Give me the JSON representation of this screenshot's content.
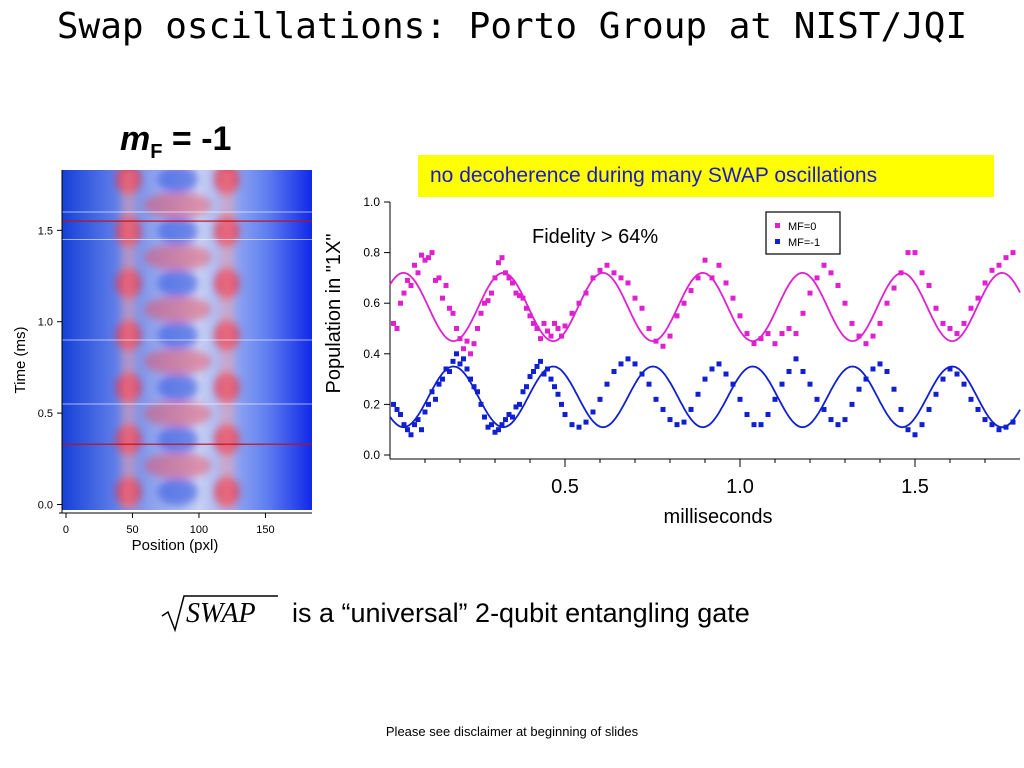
{
  "slide": {
    "title": "Swap oscillations: Porto Group at NIST/JQI",
    "banner": "no decoherence during many SWAP oscillations",
    "gate_symbol": "SWAP",
    "gate_text": "is a “universal” 2-qubit entangling gate",
    "disclaimer": "Please see disclaimer at beginning of slides"
  },
  "colors": {
    "mf0": "#e020d0",
    "mf_minus1": "#1020d0",
    "banner_bg": "#ffff00",
    "banner_text": "#1a1ac8"
  },
  "chart_data": [
    {
      "type": "heatmap",
      "title": "m_F = -1",
      "title_parts": {
        "symbol": "m",
        "subscript": "F",
        "rest": " = -1"
      },
      "xlabel": "Position (pxl)",
      "ylabel": "Time (ms)",
      "xlim": [
        -3,
        185
      ],
      "ylim": [
        -0.03,
        1.83
      ],
      "x_ticks": [
        0,
        50,
        100,
        150
      ],
      "x_tick_labels": [
        "0",
        "50",
        "100",
        "150"
      ],
      "y_ticks": [
        0.0,
        0.5,
        1.0,
        1.5
      ],
      "y_tick_labels": [
        "0.0",
        "0.5",
        "1.0",
        "1.5"
      ],
      "colormap": [
        "#1030e0",
        "#ffffff",
        "#e02030"
      ]
    },
    {
      "type": "scatter",
      "xlabel": "milliseconds",
      "ylabel": "Population in \"1X\"",
      "annotation": "Fidelity > 64%",
      "xlim": [
        0,
        1.8
      ],
      "ylim": [
        0,
        1.0
      ],
      "x_ticks": [
        0.5,
        1.0,
        1.5
      ],
      "x_tick_labels": [
        "0.5",
        "1.0",
        "1.5"
      ],
      "y_ticks": [
        0.0,
        0.2,
        0.4,
        0.6,
        0.8,
        1.0
      ],
      "y_tick_labels": [
        "0.0",
        "0.2",
        "0.4",
        "0.6",
        "0.8",
        "1.0"
      ],
      "legend": "top-right",
      "series": [
        {
          "name": "MF=0",
          "marker": "square",
          "points": [
            [
              0.01,
              0.52
            ],
            [
              0.02,
              0.5
            ],
            [
              0.03,
              0.6
            ],
            [
              0.04,
              0.64
            ],
            [
              0.05,
              0.69
            ],
            [
              0.06,
              0.67
            ],
            [
              0.07,
              0.75
            ],
            [
              0.08,
              0.72
            ],
            [
              0.09,
              0.79
            ],
            [
              0.1,
              0.77
            ],
            [
              0.11,
              0.78
            ],
            [
              0.12,
              0.8
            ],
            [
              0.13,
              0.69
            ],
            [
              0.14,
              0.7
            ],
            [
              0.15,
              0.62
            ],
            [
              0.16,
              0.67
            ],
            [
              0.17,
              0.58
            ],
            [
              0.18,
              0.56
            ],
            [
              0.19,
              0.5
            ],
            [
              0.2,
              0.46
            ],
            [
              0.21,
              0.42
            ],
            [
              0.22,
              0.45
            ],
            [
              0.23,
              0.4
            ],
            [
              0.24,
              0.44
            ],
            [
              0.25,
              0.5
            ],
            [
              0.26,
              0.56
            ],
            [
              0.27,
              0.6
            ],
            [
              0.28,
              0.61
            ],
            [
              0.29,
              0.64
            ],
            [
              0.3,
              0.7
            ],
            [
              0.31,
              0.76
            ],
            [
              0.32,
              0.78
            ],
            [
              0.33,
              0.72
            ],
            [
              0.34,
              0.7
            ],
            [
              0.35,
              0.68
            ],
            [
              0.36,
              0.64
            ],
            [
              0.37,
              0.63
            ],
            [
              0.38,
              0.62
            ],
            [
              0.39,
              0.58
            ],
            [
              0.4,
              0.55
            ],
            [
              0.41,
              0.52
            ],
            [
              0.42,
              0.5
            ],
            [
              0.43,
              0.46
            ],
            [
              0.44,
              0.52
            ],
            [
              0.45,
              0.49
            ],
            [
              0.46,
              0.47
            ],
            [
              0.47,
              0.52
            ],
            [
              0.48,
              0.5
            ],
            [
              0.49,
              0.47
            ],
            [
              0.5,
              0.51
            ],
            [
              0.52,
              0.56
            ],
            [
              0.54,
              0.6
            ],
            [
              0.56,
              0.64
            ],
            [
              0.58,
              0.7
            ],
            [
              0.6,
              0.73
            ],
            [
              0.62,
              0.75
            ],
            [
              0.64,
              0.72
            ],
            [
              0.66,
              0.7
            ],
            [
              0.68,
              0.68
            ],
            [
              0.7,
              0.62
            ],
            [
              0.72,
              0.58
            ],
            [
              0.74,
              0.5
            ],
            [
              0.76,
              0.45
            ],
            [
              0.78,
              0.43
            ],
            [
              0.8,
              0.47
            ],
            [
              0.82,
              0.55
            ],
            [
              0.84,
              0.6
            ],
            [
              0.86,
              0.65
            ],
            [
              0.88,
              0.7
            ],
            [
              0.9,
              0.77
            ],
            [
              0.92,
              0.7
            ],
            [
              0.94,
              0.75
            ],
            [
              0.96,
              0.68
            ],
            [
              0.98,
              0.62
            ],
            [
              1.0,
              0.55
            ],
            [
              1.02,
              0.48
            ],
            [
              1.04,
              0.44
            ],
            [
              1.06,
              0.46
            ],
            [
              1.08,
              0.48
            ],
            [
              1.1,
              0.44
            ],
            [
              1.12,
              0.48
            ],
            [
              1.14,
              0.5
            ],
            [
              1.16,
              0.48
            ],
            [
              1.18,
              0.56
            ],
            [
              1.2,
              0.64
            ],
            [
              1.22,
              0.7
            ],
            [
              1.24,
              0.75
            ],
            [
              1.26,
              0.72
            ],
            [
              1.28,
              0.67
            ],
            [
              1.3,
              0.6
            ],
            [
              1.32,
              0.52
            ],
            [
              1.34,
              0.47
            ],
            [
              1.36,
              0.44
            ],
            [
              1.38,
              0.47
            ],
            [
              1.4,
              0.52
            ],
            [
              1.42,
              0.6
            ],
            [
              1.44,
              0.66
            ],
            [
              1.46,
              0.72
            ],
            [
              1.48,
              0.8
            ],
            [
              1.5,
              0.8
            ],
            [
              1.52,
              0.72
            ],
            [
              1.54,
              0.67
            ],
            [
              1.56,
              0.58
            ],
            [
              1.58,
              0.52
            ],
            [
              1.6,
              0.5
            ],
            [
              1.62,
              0.48
            ],
            [
              1.64,
              0.52
            ],
            [
              1.66,
              0.58
            ],
            [
              1.68,
              0.62
            ],
            [
              1.7,
              0.68
            ],
            [
              1.72,
              0.73
            ],
            [
              1.74,
              0.75
            ],
            [
              1.76,
              0.78
            ],
            [
              1.78,
              0.8
            ]
          ]
        },
        {
          "name": "MF=-1",
          "marker": "square",
          "points": [
            [
              0.01,
              0.2
            ],
            [
              0.02,
              0.18
            ],
            [
              0.03,
              0.16
            ],
            [
              0.04,
              0.12
            ],
            [
              0.05,
              0.1
            ],
            [
              0.06,
              0.08
            ],
            [
              0.07,
              0.12
            ],
            [
              0.08,
              0.14
            ],
            [
              0.09,
              0.1
            ],
            [
              0.1,
              0.17
            ],
            [
              0.11,
              0.2
            ],
            [
              0.12,
              0.25
            ],
            [
              0.13,
              0.22
            ],
            [
              0.14,
              0.28
            ],
            [
              0.15,
              0.3
            ],
            [
              0.16,
              0.34
            ],
            [
              0.17,
              0.33
            ],
            [
              0.18,
              0.37
            ],
            [
              0.19,
              0.4
            ],
            [
              0.2,
              0.36
            ],
            [
              0.21,
              0.38
            ],
            [
              0.22,
              0.34
            ],
            [
              0.23,
              0.3
            ],
            [
              0.24,
              0.27
            ],
            [
              0.25,
              0.25
            ],
            [
              0.26,
              0.2
            ],
            [
              0.27,
              0.15
            ],
            [
              0.28,
              0.11
            ],
            [
              0.29,
              0.12
            ],
            [
              0.3,
              0.09
            ],
            [
              0.31,
              0.1
            ],
            [
              0.32,
              0.12
            ],
            [
              0.33,
              0.14
            ],
            [
              0.34,
              0.16
            ],
            [
              0.35,
              0.15
            ],
            [
              0.36,
              0.19
            ],
            [
              0.37,
              0.2
            ],
            [
              0.38,
              0.25
            ],
            [
              0.39,
              0.27
            ],
            [
              0.4,
              0.31
            ],
            [
              0.41,
              0.33
            ],
            [
              0.42,
              0.35
            ],
            [
              0.43,
              0.37
            ],
            [
              0.44,
              0.32
            ],
            [
              0.45,
              0.34
            ],
            [
              0.46,
              0.3
            ],
            [
              0.47,
              0.27
            ],
            [
              0.48,
              0.24
            ],
            [
              0.49,
              0.2
            ],
            [
              0.5,
              0.16
            ],
            [
              0.52,
              0.12
            ],
            [
              0.54,
              0.11
            ],
            [
              0.56,
              0.13
            ],
            [
              0.58,
              0.17
            ],
            [
              0.6,
              0.22
            ],
            [
              0.62,
              0.28
            ],
            [
              0.64,
              0.33
            ],
            [
              0.66,
              0.36
            ],
            [
              0.68,
              0.38
            ],
            [
              0.7,
              0.36
            ],
            [
              0.72,
              0.32
            ],
            [
              0.74,
              0.28
            ],
            [
              0.76,
              0.22
            ],
            [
              0.78,
              0.18
            ],
            [
              0.8,
              0.14
            ],
            [
              0.82,
              0.12
            ],
            [
              0.84,
              0.13
            ],
            [
              0.86,
              0.18
            ],
            [
              0.88,
              0.24
            ],
            [
              0.9,
              0.3
            ],
            [
              0.92,
              0.34
            ],
            [
              0.94,
              0.36
            ],
            [
              0.96,
              0.32
            ],
            [
              0.98,
              0.28
            ],
            [
              1.0,
              0.22
            ],
            [
              1.02,
              0.16
            ],
            [
              1.04,
              0.12
            ],
            [
              1.06,
              0.12
            ],
            [
              1.08,
              0.16
            ],
            [
              1.1,
              0.22
            ],
            [
              1.12,
              0.28
            ],
            [
              1.14,
              0.33
            ],
            [
              1.16,
              0.38
            ],
            [
              1.18,
              0.33
            ],
            [
              1.2,
              0.28
            ],
            [
              1.22,
              0.22
            ],
            [
              1.24,
              0.18
            ],
            [
              1.26,
              0.14
            ],
            [
              1.28,
              0.12
            ],
            [
              1.3,
              0.14
            ],
            [
              1.32,
              0.2
            ],
            [
              1.34,
              0.26
            ],
            [
              1.36,
              0.3
            ],
            [
              1.38,
              0.34
            ],
            [
              1.4,
              0.36
            ],
            [
              1.42,
              0.33
            ],
            [
              1.44,
              0.26
            ],
            [
              1.46,
              0.18
            ],
            [
              1.48,
              0.1
            ],
            [
              1.5,
              0.08
            ],
            [
              1.52,
              0.12
            ],
            [
              1.54,
              0.18
            ],
            [
              1.56,
              0.24
            ],
            [
              1.58,
              0.3
            ],
            [
              1.6,
              0.34
            ],
            [
              1.62,
              0.32
            ],
            [
              1.64,
              0.28
            ],
            [
              1.66,
              0.22
            ],
            [
              1.68,
              0.18
            ],
            [
              1.7,
              0.14
            ],
            [
              1.72,
              0.12
            ],
            [
              1.74,
              0.1
            ],
            [
              1.76,
              0.11
            ],
            [
              1.78,
              0.13
            ]
          ]
        }
      ],
      "fit_curves": [
        {
          "name": "MF=0",
          "offset": 0.585,
          "amplitude": 0.135,
          "period_ms": 0.285,
          "phase": 0.72
        },
        {
          "name": "MF=-1",
          "offset": 0.23,
          "amplitude": 0.12,
          "period_ms": 0.285,
          "phase": 3.86
        }
      ]
    }
  ]
}
